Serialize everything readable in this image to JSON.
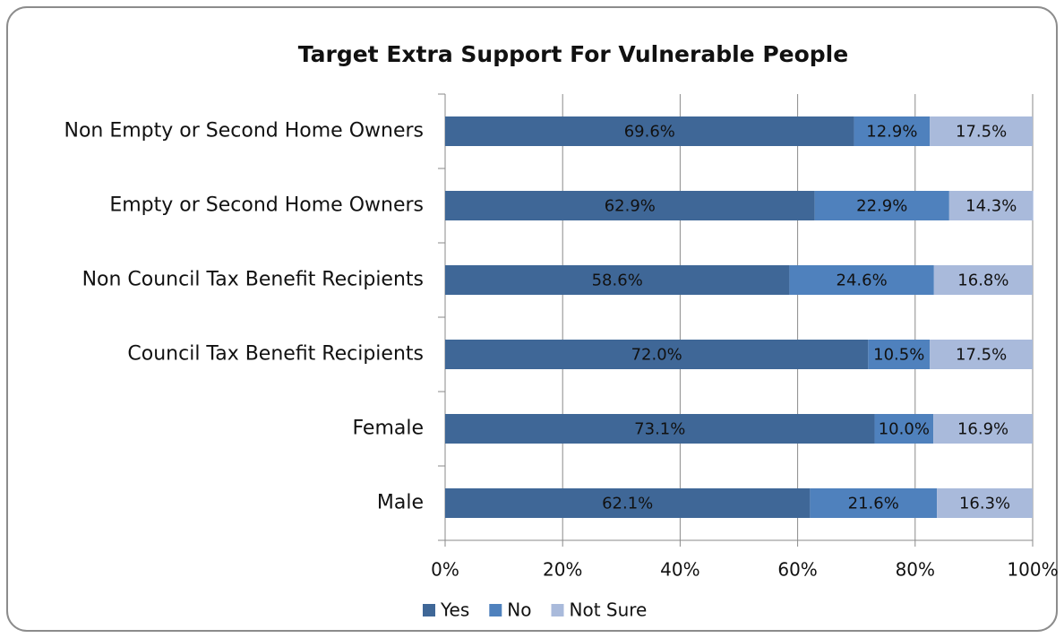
{
  "chart_data": {
    "type": "stacked_barh",
    "title": "Target Extra Support For Vulnerable People",
    "categories": [
      "Non Empty or Second Home Owners",
      "Empty or Second Home Owners",
      "Non Council Tax Benefit Recipients",
      "Council Tax Benefit Recipients",
      "Female",
      "Male"
    ],
    "series": [
      {
        "name": "Yes",
        "color": "#3f6797",
        "values": [
          69.6,
          62.9,
          58.6,
          72.0,
          73.1,
          62.1
        ],
        "value_labels": [
          "69.6%",
          "62.9%",
          "58.6%",
          "72.0%",
          "73.1%",
          "62.1%"
        ]
      },
      {
        "name": "No",
        "color": "#4f81bd",
        "values": [
          12.9,
          22.9,
          24.6,
          10.5,
          10.0,
          21.6
        ],
        "value_labels": [
          "12.9%",
          "22.9%",
          "24.6%",
          "10.5%",
          "10.0%",
          "21.6%"
        ]
      },
      {
        "name": "Not Sure",
        "color": "#a9badb",
        "values": [
          17.5,
          14.3,
          16.8,
          17.5,
          16.9,
          16.3
        ],
        "value_labels": [
          "17.5%",
          "14.3%",
          "16.8%",
          "17.5%",
          "16.9%",
          "16.3%"
        ]
      }
    ],
    "xlim": [
      0,
      100
    ],
    "xticks": [
      {
        "value": 0,
        "label": "0%"
      },
      {
        "value": 20,
        "label": "20%"
      },
      {
        "value": 40,
        "label": "40%"
      },
      {
        "value": 60,
        "label": "60%"
      },
      {
        "value": 80,
        "label": "80%"
      },
      {
        "value": 100,
        "label": "100%"
      }
    ],
    "grid": true,
    "legend": "bottom"
  }
}
